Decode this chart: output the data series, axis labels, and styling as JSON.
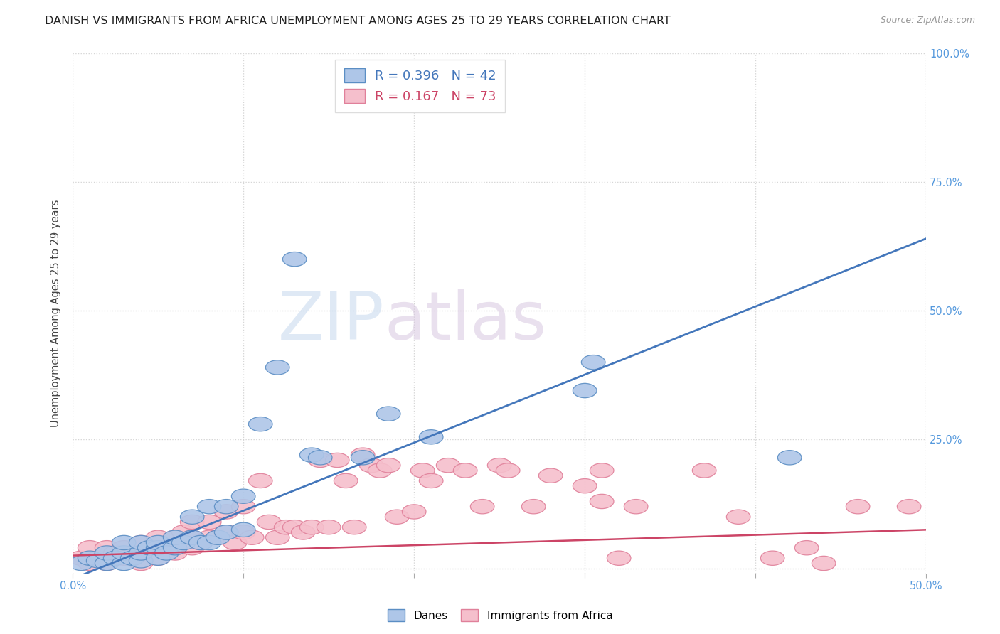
{
  "title": "DANISH VS IMMIGRANTS FROM AFRICA UNEMPLOYMENT AMONG AGES 25 TO 29 YEARS CORRELATION CHART",
  "source": "Source: ZipAtlas.com",
  "ylabel": "Unemployment Among Ages 25 to 29 years",
  "xlim": [
    0.0,
    0.5
  ],
  "ylim": [
    -0.01,
    1.0
  ],
  "xticks": [
    0.0,
    0.1,
    0.2,
    0.3,
    0.4,
    0.5
  ],
  "xticklabels": [
    "0.0%",
    "",
    "",
    "",
    "",
    "50.0%"
  ],
  "yticks": [
    0.0,
    0.25,
    0.5,
    0.75,
    1.0
  ],
  "ylabels_right": [
    "",
    "25.0%",
    "50.0%",
    "75.0%",
    "100.0%"
  ],
  "danes_color": "#aec6e8",
  "danes_edge_color": "#5b8ec4",
  "africa_color": "#f5bfcc",
  "africa_edge_color": "#e0809a",
  "danes_line_color": "#4477bb",
  "africa_line_color": "#cc4466",
  "danes_R": 0.396,
  "danes_N": 42,
  "africa_R": 0.167,
  "africa_N": 73,
  "danes_line_intercept": -0.02,
  "danes_line_slope": 1.32,
  "africa_line_intercept": 0.025,
  "africa_line_slope": 0.1,
  "danes_scatter_x": [
    0.005,
    0.01,
    0.015,
    0.02,
    0.02,
    0.025,
    0.03,
    0.03,
    0.03,
    0.035,
    0.04,
    0.04,
    0.04,
    0.045,
    0.05,
    0.05,
    0.05,
    0.055,
    0.06,
    0.06,
    0.065,
    0.07,
    0.07,
    0.075,
    0.08,
    0.08,
    0.085,
    0.09,
    0.09,
    0.1,
    0.1,
    0.11,
    0.12,
    0.13,
    0.14,
    0.145,
    0.17,
    0.185,
    0.21,
    0.3,
    0.305,
    0.42
  ],
  "danes_scatter_y": [
    0.01,
    0.02,
    0.015,
    0.01,
    0.03,
    0.02,
    0.01,
    0.03,
    0.05,
    0.02,
    0.015,
    0.03,
    0.05,
    0.04,
    0.02,
    0.04,
    0.05,
    0.03,
    0.04,
    0.06,
    0.05,
    0.06,
    0.1,
    0.05,
    0.05,
    0.12,
    0.06,
    0.07,
    0.12,
    0.075,
    0.14,
    0.28,
    0.39,
    0.6,
    0.22,
    0.215,
    0.215,
    0.3,
    0.255,
    0.345,
    0.4,
    0.215
  ],
  "africa_scatter_x": [
    0.005,
    0.01,
    0.01,
    0.015,
    0.02,
    0.02,
    0.025,
    0.03,
    0.03,
    0.035,
    0.04,
    0.04,
    0.04,
    0.045,
    0.05,
    0.05,
    0.05,
    0.055,
    0.06,
    0.06,
    0.065,
    0.07,
    0.07,
    0.07,
    0.075,
    0.08,
    0.08,
    0.085,
    0.09,
    0.09,
    0.095,
    0.1,
    0.1,
    0.105,
    0.11,
    0.115,
    0.12,
    0.125,
    0.13,
    0.135,
    0.14,
    0.145,
    0.15,
    0.155,
    0.16,
    0.165,
    0.17,
    0.175,
    0.18,
    0.185,
    0.19,
    0.2,
    0.205,
    0.21,
    0.22,
    0.23,
    0.24,
    0.25,
    0.255,
    0.27,
    0.28,
    0.3,
    0.31,
    0.31,
    0.32,
    0.33,
    0.37,
    0.39,
    0.41,
    0.43,
    0.44,
    0.46,
    0.49
  ],
  "africa_scatter_y": [
    0.02,
    0.01,
    0.04,
    0.02,
    0.01,
    0.04,
    0.03,
    0.02,
    0.04,
    0.03,
    0.01,
    0.03,
    0.05,
    0.04,
    0.02,
    0.04,
    0.06,
    0.04,
    0.03,
    0.06,
    0.07,
    0.04,
    0.06,
    0.09,
    0.05,
    0.06,
    0.09,
    0.06,
    0.07,
    0.11,
    0.05,
    0.07,
    0.12,
    0.06,
    0.17,
    0.09,
    0.06,
    0.08,
    0.08,
    0.07,
    0.08,
    0.21,
    0.08,
    0.21,
    0.17,
    0.08,
    0.22,
    0.2,
    0.19,
    0.2,
    0.1,
    0.11,
    0.19,
    0.17,
    0.2,
    0.19,
    0.12,
    0.2,
    0.19,
    0.12,
    0.18,
    0.16,
    0.19,
    0.13,
    0.02,
    0.12,
    0.19,
    0.1,
    0.02,
    0.04,
    0.01,
    0.12,
    0.12
  ],
  "watermark_zip": "ZIP",
  "watermark_atlas": "atlas",
  "background_color": "#ffffff",
  "grid_color": "#cccccc",
  "title_fontsize": 11.5,
  "axis_tick_color": "#5599dd",
  "axis_tick_fontsize": 10.5
}
